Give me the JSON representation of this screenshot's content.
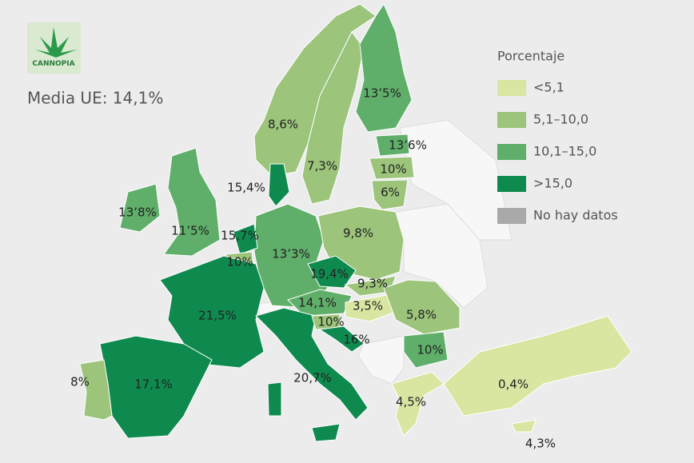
{
  "logo": "CANNOPIA",
  "subtitle": "Media UE: 14,1%",
  "legend": {
    "title": "Porcentaje",
    "items": [
      {
        "label": "<5,1",
        "color": "#d8e6a2"
      },
      {
        "label": "5,1–10,0",
        "color": "#9cc47a"
      },
      {
        "label": "10,1–15,0",
        "color": "#5fae6a"
      },
      {
        "label": ">15,0",
        "color": "#0f8a4f"
      },
      {
        "label": "No hay datos",
        "color": "#a9a9a9"
      }
    ]
  },
  "regions": [
    {
      "label": "13’5%",
      "color": "#5fae6a"
    },
    {
      "label": "13’6%",
      "color": "#5fae6a"
    },
    {
      "label": "10%",
      "color": "#9cc47a"
    },
    {
      "label": "6%",
      "color": "#9cc47a"
    },
    {
      "label": "8,6%",
      "color": "#9cc47a"
    },
    {
      "label": "7,3%",
      "color": "#9cc47a"
    },
    {
      "label": "15,4%",
      "color": "#0f8a4f"
    },
    {
      "label": "13’8%",
      "color": "#5fae6a"
    },
    {
      "label": "11’5%",
      "color": "#5fae6a"
    },
    {
      "label": "15,7%",
      "color": "#0f8a4f"
    },
    {
      "label": "10%",
      "color": "#9cc47a"
    },
    {
      "label": "13’3%",
      "color": "#5fae6a"
    },
    {
      "label": "9,8%",
      "color": "#9cc47a"
    },
    {
      "label": "19,4%",
      "color": "#0f8a4f"
    },
    {
      "label": "9,3%",
      "color": "#9cc47a"
    },
    {
      "label": "14,1%",
      "color": "#5fae6a"
    },
    {
      "label": "3,5%",
      "color": "#d8e6a2"
    },
    {
      "label": "5,8%",
      "color": "#9cc47a"
    },
    {
      "label": "21,5%",
      "color": "#0f8a4f"
    },
    {
      "label": "10%",
      "color": "#9cc47a"
    },
    {
      "label": "16%",
      "color": "#0f8a4f"
    },
    {
      "label": "10%",
      "color": "#5fae6a"
    },
    {
      "label": "20,7%",
      "color": "#0f8a4f"
    },
    {
      "label": "17,1%",
      "color": "#0f8a4f"
    },
    {
      "label": "8%",
      "color": "#9cc47a"
    },
    {
      "label": "4,5%",
      "color": "#d8e6a2"
    },
    {
      "label": "0,4%",
      "color": "#d8e6a2"
    },
    {
      "label": "4,3%",
      "color": "#d8e6a2"
    }
  ]
}
